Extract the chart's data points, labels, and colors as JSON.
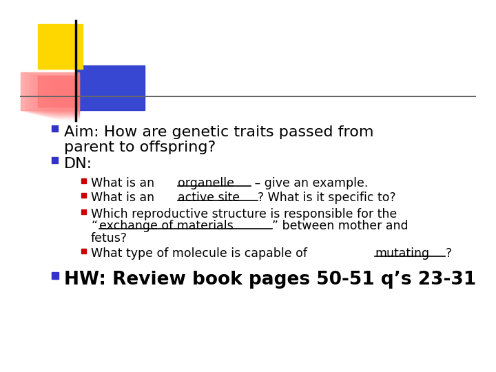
{
  "bg_color": "#ffffff",
  "logo_yellow": "#FFD700",
  "logo_pink_r": 255,
  "logo_pink_g": 100,
  "logo_pink_b": 100,
  "logo_blue": "#2233CC",
  "line_color": "#666666",
  "bullet_color_main": "#3333CC",
  "bullet_color_sub": "#CC0000",
  "main_bullet1_line1": "Aim: How are genetic traits passed from",
  "main_bullet1_line2": "parent to offspring?",
  "main_bullet2": "DN:",
  "sub_bullet1_plain": "What is an ",
  "sub_bullet1_underline": "organelle",
  "sub_bullet1_rest": " – give an example.",
  "sub_bullet2_plain": "What is an ",
  "sub_bullet2_underline": "active site",
  "sub_bullet2_rest": "? What is it specific to?",
  "sub_bullet3_line1": "Which reproductive structure is responsible for the",
  "sub_bullet3_line2_open": "“",
  "sub_bullet3_line2_underline": "exchange of materials",
  "sub_bullet3_line2_close": "” between mother and",
  "sub_bullet3_line3": "fetus?",
  "sub_bullet4_plain": "What type of molecule is capable of ",
  "sub_bullet4_underline": "mutating",
  "sub_bullet4_rest": "?",
  "hw_line": "HW: Review book pages 50-51 q’s 23-31",
  "font_family": "DejaVu Sans",
  "fs_main": 16,
  "fs_sub": 12.5,
  "fs_hw": 19
}
